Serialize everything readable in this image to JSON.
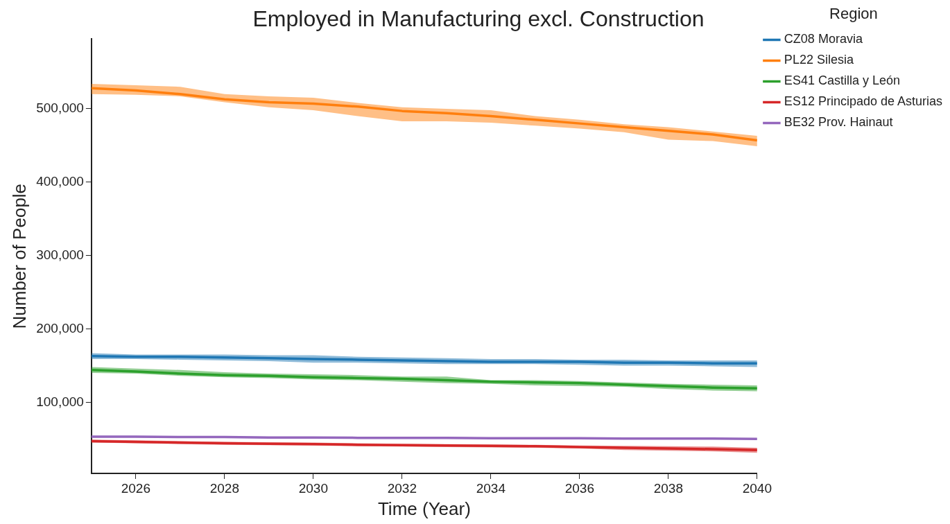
{
  "chart_data": {
    "type": "line",
    "title": "Employed in Manufacturing excl. Construction",
    "xlabel": "Time (Year)",
    "ylabel": "Number of People",
    "legend_title": "Region",
    "legend": "top right",
    "grid": false,
    "marker": "none",
    "line_style": "solid",
    "x": [
      2025,
      2026,
      2027,
      2028,
      2029,
      2030,
      2031,
      2032,
      2033,
      2034,
      2035,
      2036,
      2037,
      2038,
      2039,
      2040
    ],
    "xlim": [
      2025,
      2040
    ],
    "xticks": [
      2026,
      2028,
      2030,
      2032,
      2034,
      2036,
      2038,
      2040
    ],
    "ylim": [
      3000,
      595000
    ],
    "yticks": [
      {
        "value": 100000,
        "label": "100,000"
      },
      {
        "value": 200000,
        "label": "200,000"
      },
      {
        "value": 300000,
        "label": "300,000"
      },
      {
        "value": 400000,
        "label": "400,000"
      },
      {
        "value": 500000,
        "label": "500,000"
      }
    ],
    "series": [
      {
        "name": "CZ08 Moravia",
        "color": "#1f77b4",
        "values": [
          163000,
          162000,
          162000,
          161000,
          160000,
          159000,
          158000,
          157000,
          156000,
          155000,
          155000,
          155000,
          154000,
          154000,
          153000,
          153000
        ],
        "lower": [
          159000,
          159000,
          158000,
          157000,
          156000,
          154000,
          154000,
          153000,
          152000,
          152000,
          152000,
          151000,
          150000,
          150000,
          149000,
          148000
        ],
        "upper": [
          167000,
          165000,
          165000,
          165000,
          164000,
          164000,
          162000,
          161000,
          160000,
          159000,
          159000,
          158000,
          158000,
          157000,
          157000,
          157000
        ]
      },
      {
        "name": "PL22 Silesia",
        "color": "#ff7f0e",
        "values": [
          528000,
          525000,
          520000,
          513000,
          509000,
          507000,
          503000,
          497000,
          494000,
          490000,
          485000,
          480000,
          475000,
          470000,
          465000,
          457000
        ],
        "lower": [
          520000,
          519000,
          517000,
          509000,
          502000,
          498000,
          490000,
          483000,
          483000,
          481000,
          477000,
          473000,
          468000,
          458000,
          456000,
          449000
        ],
        "upper": [
          534000,
          532000,
          530000,
          520000,
          517000,
          515000,
          508000,
          502000,
          500000,
          498000,
          490000,
          485000,
          479000,
          475000,
          469000,
          463000
        ]
      },
      {
        "name": "ES41 Castilla y León",
        "color": "#2ca02c",
        "values": [
          144000,
          142000,
          139000,
          137000,
          136000,
          134000,
          133000,
          132000,
          130000,
          128000,
          127000,
          126000,
          124000,
          122000,
          120000,
          119000
        ],
        "lower": [
          140000,
          139000,
          136000,
          134000,
          133000,
          131000,
          130000,
          128000,
          126000,
          125000,
          123000,
          122000,
          121000,
          118000,
          116000,
          115000
        ],
        "upper": [
          148000,
          146000,
          144000,
          141000,
          139000,
          138000,
          137000,
          135000,
          135000,
          130000,
          130000,
          129000,
          127000,
          125000,
          124000,
          123000
        ]
      },
      {
        "name": "ES12 Principado de Asturias",
        "color": "#d62728",
        "values": [
          47000,
          46000,
          45000,
          44000,
          43500,
          43000,
          42000,
          41500,
          41000,
          40500,
          40000,
          39000,
          38000,
          37000,
          36000,
          35000
        ],
        "lower": [
          45000,
          44000,
          43000,
          42000,
          41500,
          41000,
          40000,
          39500,
          39000,
          38500,
          38000,
          37000,
          35000,
          34000,
          33000,
          31000
        ],
        "upper": [
          49000,
          48000,
          47000,
          46000,
          45500,
          45000,
          44000,
          43500,
          43000,
          42500,
          42000,
          41000,
          40500,
          40000,
          39500,
          38000
        ]
      },
      {
        "name": "BE32 Prov. Hainaut",
        "color": "#9467bd",
        "values": [
          53000,
          53000,
          52500,
          52500,
          52000,
          52000,
          51500,
          51500,
          51500,
          51000,
          51000,
          51000,
          50500,
          50500,
          50500,
          50000
        ],
        "lower": [
          52000,
          52000,
          51500,
          51500,
          51000,
          51000,
          50500,
          50500,
          50500,
          50000,
          50000,
          50000,
          49500,
          49500,
          49500,
          49000
        ],
        "upper": [
          54000,
          54000,
          53500,
          53500,
          53000,
          53000,
          52500,
          52500,
          52500,
          52000,
          52000,
          52000,
          51500,
          51500,
          51500,
          51000
        ]
      }
    ]
  }
}
